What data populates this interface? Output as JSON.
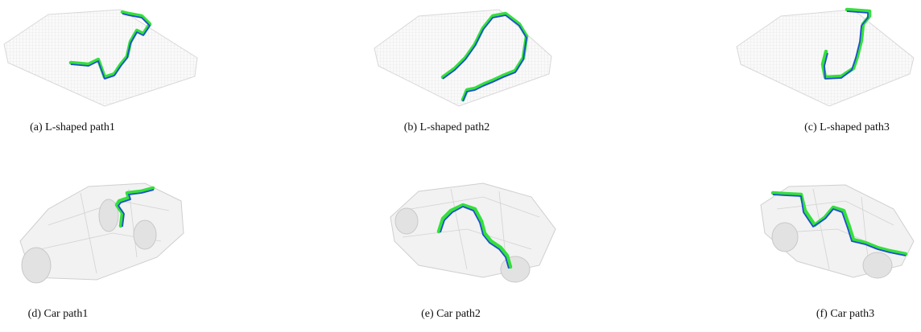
{
  "subfigures": [
    {
      "caption": "(a) L-shaped path1"
    },
    {
      "caption": "(b) L-shaped path2"
    },
    {
      "caption": "(c) L-shaped path3"
    },
    {
      "caption": "(d) Car path1"
    },
    {
      "caption": "(e) Car path2"
    },
    {
      "caption": "(f) Car path3"
    }
  ]
}
